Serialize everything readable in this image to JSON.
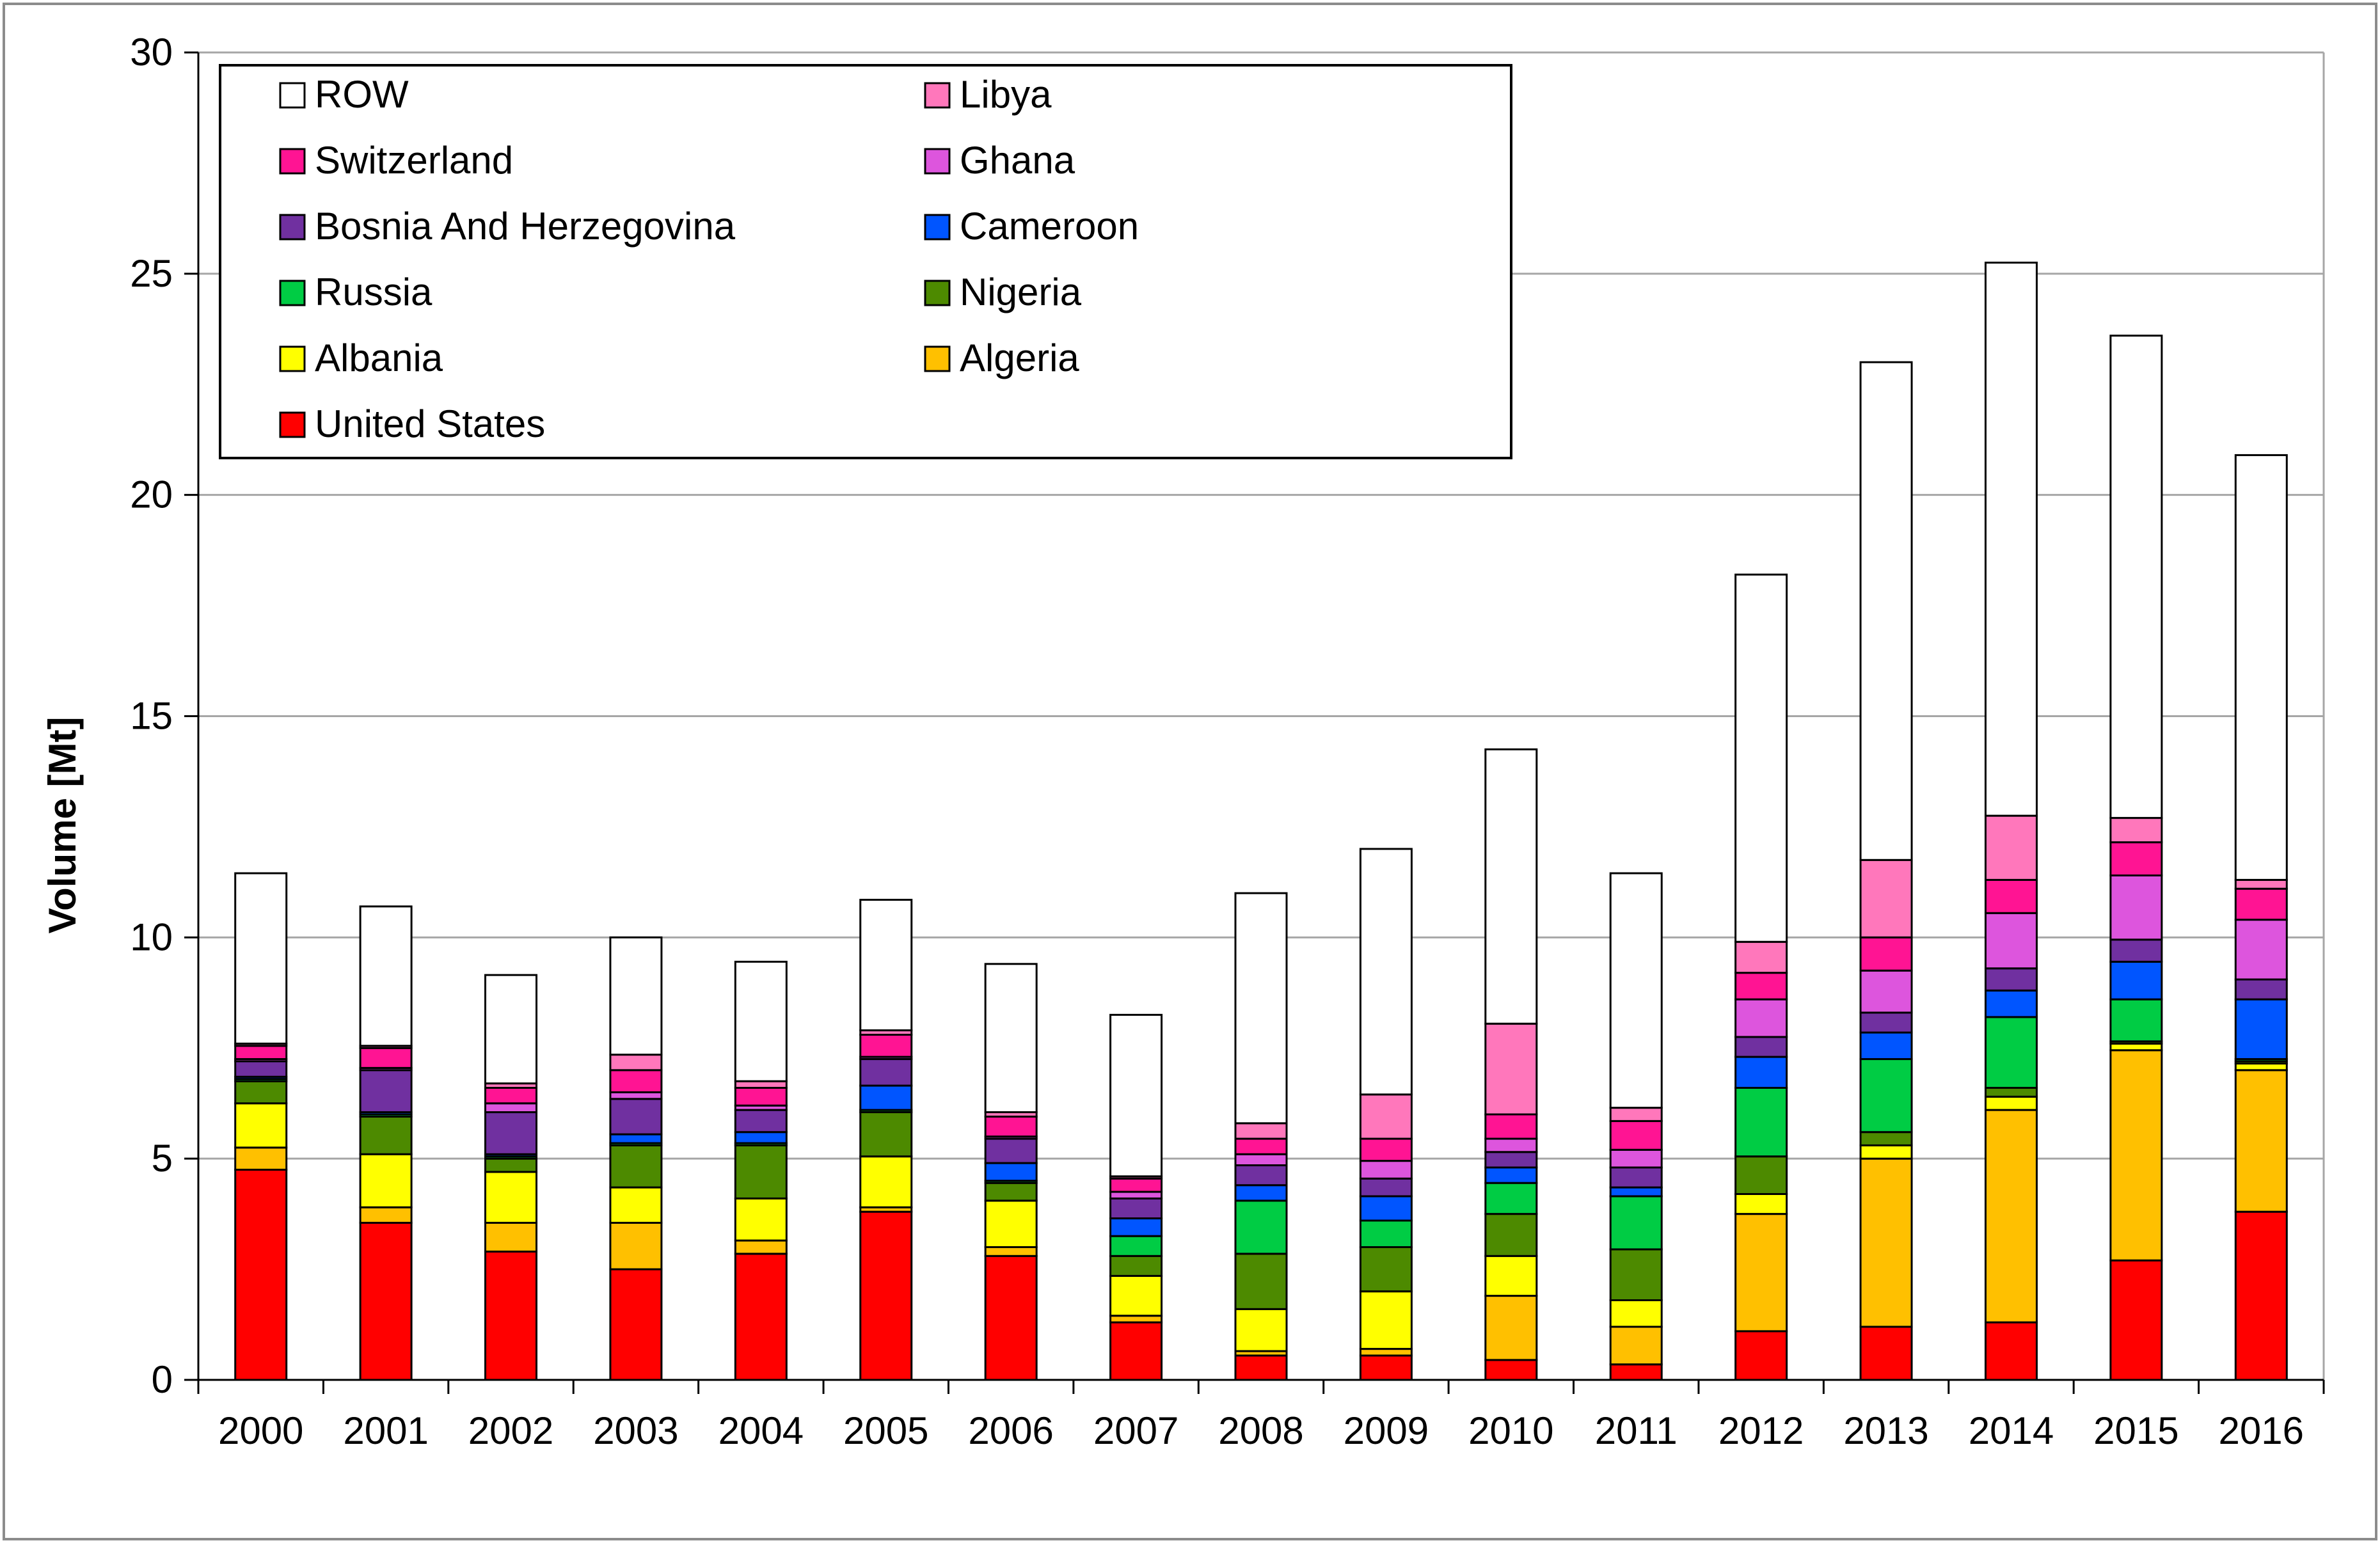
{
  "chart_data": {
    "type": "bar",
    "stacked": true,
    "title": "",
    "xlabel": "",
    "ylabel": "Volume [Mt]",
    "ylim": [
      0,
      30
    ],
    "yticks": [
      0,
      5,
      10,
      15,
      20,
      25,
      30
    ],
    "grid": true,
    "legend_position": "top-left",
    "categories": [
      "2000",
      "2001",
      "2002",
      "2003",
      "2004",
      "2005",
      "2006",
      "2007",
      "2008",
      "2009",
      "2010",
      "2011",
      "2012",
      "2013",
      "2014",
      "2015",
      "2016"
    ],
    "series": [
      {
        "name": "United States",
        "color": "#ff0000",
        "values": [
          4.75,
          3.55,
          2.9,
          2.5,
          2.85,
          3.8,
          2.8,
          1.3,
          0.55,
          0.55,
          0.45,
          0.35,
          1.1,
          1.2,
          1.3,
          2.7,
          3.8
        ]
      },
      {
        "name": "Algeria",
        "color": "#ffc000",
        "values": [
          0.5,
          0.35,
          0.65,
          1.05,
          0.3,
          0.1,
          0.2,
          0.15,
          0.1,
          0.15,
          1.45,
          0.85,
          2.65,
          3.8,
          4.8,
          4.75,
          3.2
        ]
      },
      {
        "name": "Albania",
        "color": "#ffff00",
        "values": [
          1.0,
          1.2,
          1.15,
          0.8,
          0.95,
          1.15,
          1.05,
          0.9,
          0.95,
          1.3,
          0.9,
          0.6,
          0.45,
          0.3,
          0.3,
          0.15,
          0.15
        ]
      },
      {
        "name": "Nigeria",
        "color": "#4d8a00",
        "values": [
          0.5,
          0.85,
          0.3,
          0.95,
          1.2,
          1.0,
          0.4,
          0.45,
          1.25,
          1.0,
          0.95,
          1.15,
          0.85,
          0.3,
          0.2,
          0.05,
          0.05
        ]
      },
      {
        "name": "Russia",
        "color": "#00cc44",
        "values": [
          0.05,
          0.05,
          0.05,
          0.05,
          0.05,
          0.05,
          0.05,
          0.45,
          1.2,
          0.6,
          0.7,
          1.2,
          1.55,
          1.65,
          1.6,
          0.95,
          0.05
        ]
      },
      {
        "name": "Cameroon",
        "color": "#0055ff",
        "values": [
          0.05,
          0.05,
          0.05,
          0.2,
          0.25,
          0.55,
          0.4,
          0.4,
          0.35,
          0.55,
          0.35,
          0.2,
          0.7,
          0.6,
          0.6,
          0.85,
          1.35
        ]
      },
      {
        "name": "Bosnia And Herzegovina",
        "color": "#7030a0",
        "values": [
          0.35,
          0.95,
          0.95,
          0.8,
          0.5,
          0.6,
          0.55,
          0.45,
          0.45,
          0.4,
          0.35,
          0.45,
          0.45,
          0.45,
          0.5,
          0.5,
          0.45
        ]
      },
      {
        "name": "Ghana",
        "color": "#dd55dd",
        "values": [
          0.05,
          0.05,
          0.2,
          0.15,
          0.1,
          0.05,
          0.05,
          0.15,
          0.25,
          0.4,
          0.3,
          0.4,
          0.85,
          0.95,
          1.25,
          1.45,
          1.35
        ]
      },
      {
        "name": "Switzerland",
        "color": "#ff1493",
        "values": [
          0.3,
          0.45,
          0.35,
          0.5,
          0.4,
          0.5,
          0.45,
          0.3,
          0.35,
          0.5,
          0.55,
          0.65,
          0.6,
          0.75,
          0.75,
          0.75,
          0.7
        ]
      },
      {
        "name": "Libya",
        "color": "#ff77bb",
        "values": [
          0.05,
          0.05,
          0.1,
          0.35,
          0.15,
          0.1,
          0.1,
          0.05,
          0.35,
          1.0,
          2.05,
          0.3,
          0.7,
          1.75,
          1.45,
          0.55,
          0.2
        ]
      },
      {
        "name": "ROW",
        "color": "#ffffff",
        "values": [
          3.85,
          3.15,
          2.45,
          2.65,
          2.7,
          2.95,
          3.35,
          3.65,
          5.2,
          5.55,
          6.2,
          5.3,
          8.3,
          11.25,
          12.5,
          10.9,
          9.6
        ]
      }
    ],
    "legend_order": [
      "ROW",
      "Libya",
      "Switzerland",
      "Ghana",
      "Bosnia And Herzegovina",
      "Cameroon",
      "Russia",
      "Nigeria",
      "Albania",
      "Algeria",
      "United States"
    ]
  }
}
